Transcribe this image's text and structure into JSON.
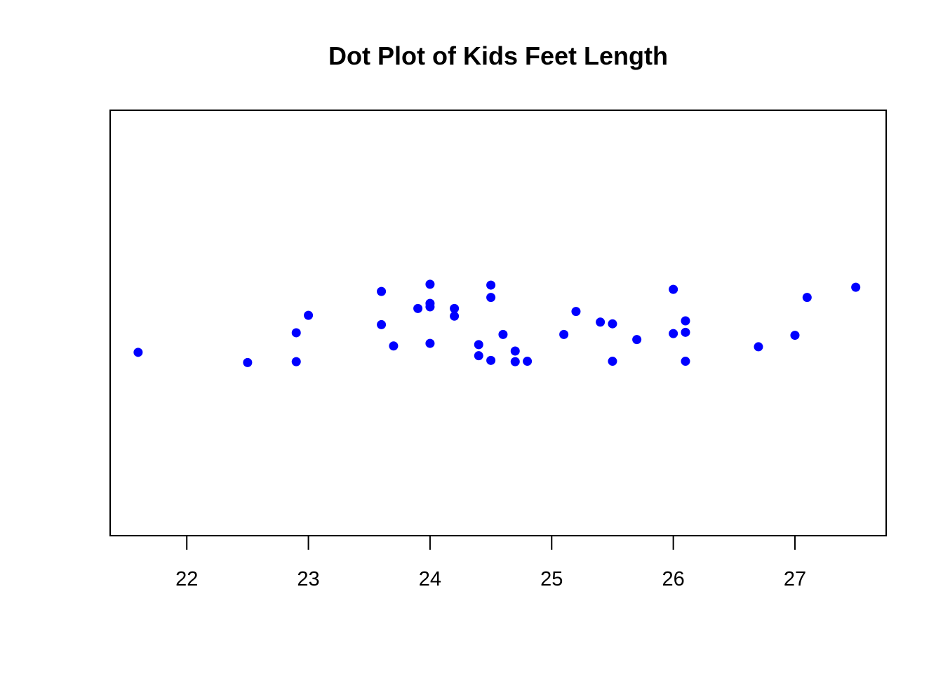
{
  "chart_data": {
    "type": "scatter",
    "title": "Dot Plot of Kids Feet Length",
    "xlabel": "",
    "ylabel": "",
    "xlim": [
      21.37,
      27.75
    ],
    "ylim": [
      0,
      1
    ],
    "x_ticks": [
      22,
      23,
      24,
      25,
      26,
      27
    ],
    "y_axis_shown": false,
    "grid": false,
    "legend": "none",
    "marker_color": "#0000ff",
    "series": [
      {
        "points": [
          {
            "x": 21.6,
            "y": 0.431
          },
          {
            "x": 22.5,
            "y": 0.407
          },
          {
            "x": 22.9,
            "y": 0.477
          },
          {
            "x": 22.9,
            "y": 0.409
          },
          {
            "x": 23.0,
            "y": 0.518
          },
          {
            "x": 23.6,
            "y": 0.574
          },
          {
            "x": 23.6,
            "y": 0.496
          },
          {
            "x": 23.7,
            "y": 0.446
          },
          {
            "x": 23.9,
            "y": 0.534
          },
          {
            "x": 24.0,
            "y": 0.591
          },
          {
            "x": 24.0,
            "y": 0.546
          },
          {
            "x": 24.0,
            "y": 0.538
          },
          {
            "x": 24.0,
            "y": 0.452
          },
          {
            "x": 24.2,
            "y": 0.534
          },
          {
            "x": 24.2,
            "y": 0.516
          },
          {
            "x": 24.4,
            "y": 0.449
          },
          {
            "x": 24.4,
            "y": 0.423
          },
          {
            "x": 24.5,
            "y": 0.589
          },
          {
            "x": 24.5,
            "y": 0.56
          },
          {
            "x": 24.5,
            "y": 0.412
          },
          {
            "x": 24.6,
            "y": 0.473
          },
          {
            "x": 24.7,
            "y": 0.434
          },
          {
            "x": 24.7,
            "y": 0.409
          },
          {
            "x": 24.8,
            "y": 0.41
          },
          {
            "x": 25.1,
            "y": 0.473
          },
          {
            "x": 25.2,
            "y": 0.527
          },
          {
            "x": 25.4,
            "y": 0.502
          },
          {
            "x": 25.5,
            "y": 0.498
          },
          {
            "x": 25.5,
            "y": 0.41
          },
          {
            "x": 25.7,
            "y": 0.461
          },
          {
            "x": 26.0,
            "y": 0.579
          },
          {
            "x": 26.0,
            "y": 0.475
          },
          {
            "x": 26.1,
            "y": 0.505
          },
          {
            "x": 26.1,
            "y": 0.478
          },
          {
            "x": 26.1,
            "y": 0.41
          },
          {
            "x": 26.7,
            "y": 0.444
          },
          {
            "x": 27.0,
            "y": 0.471
          },
          {
            "x": 27.1,
            "y": 0.56
          },
          {
            "x": 27.5,
            "y": 0.584
          }
        ]
      }
    ]
  }
}
